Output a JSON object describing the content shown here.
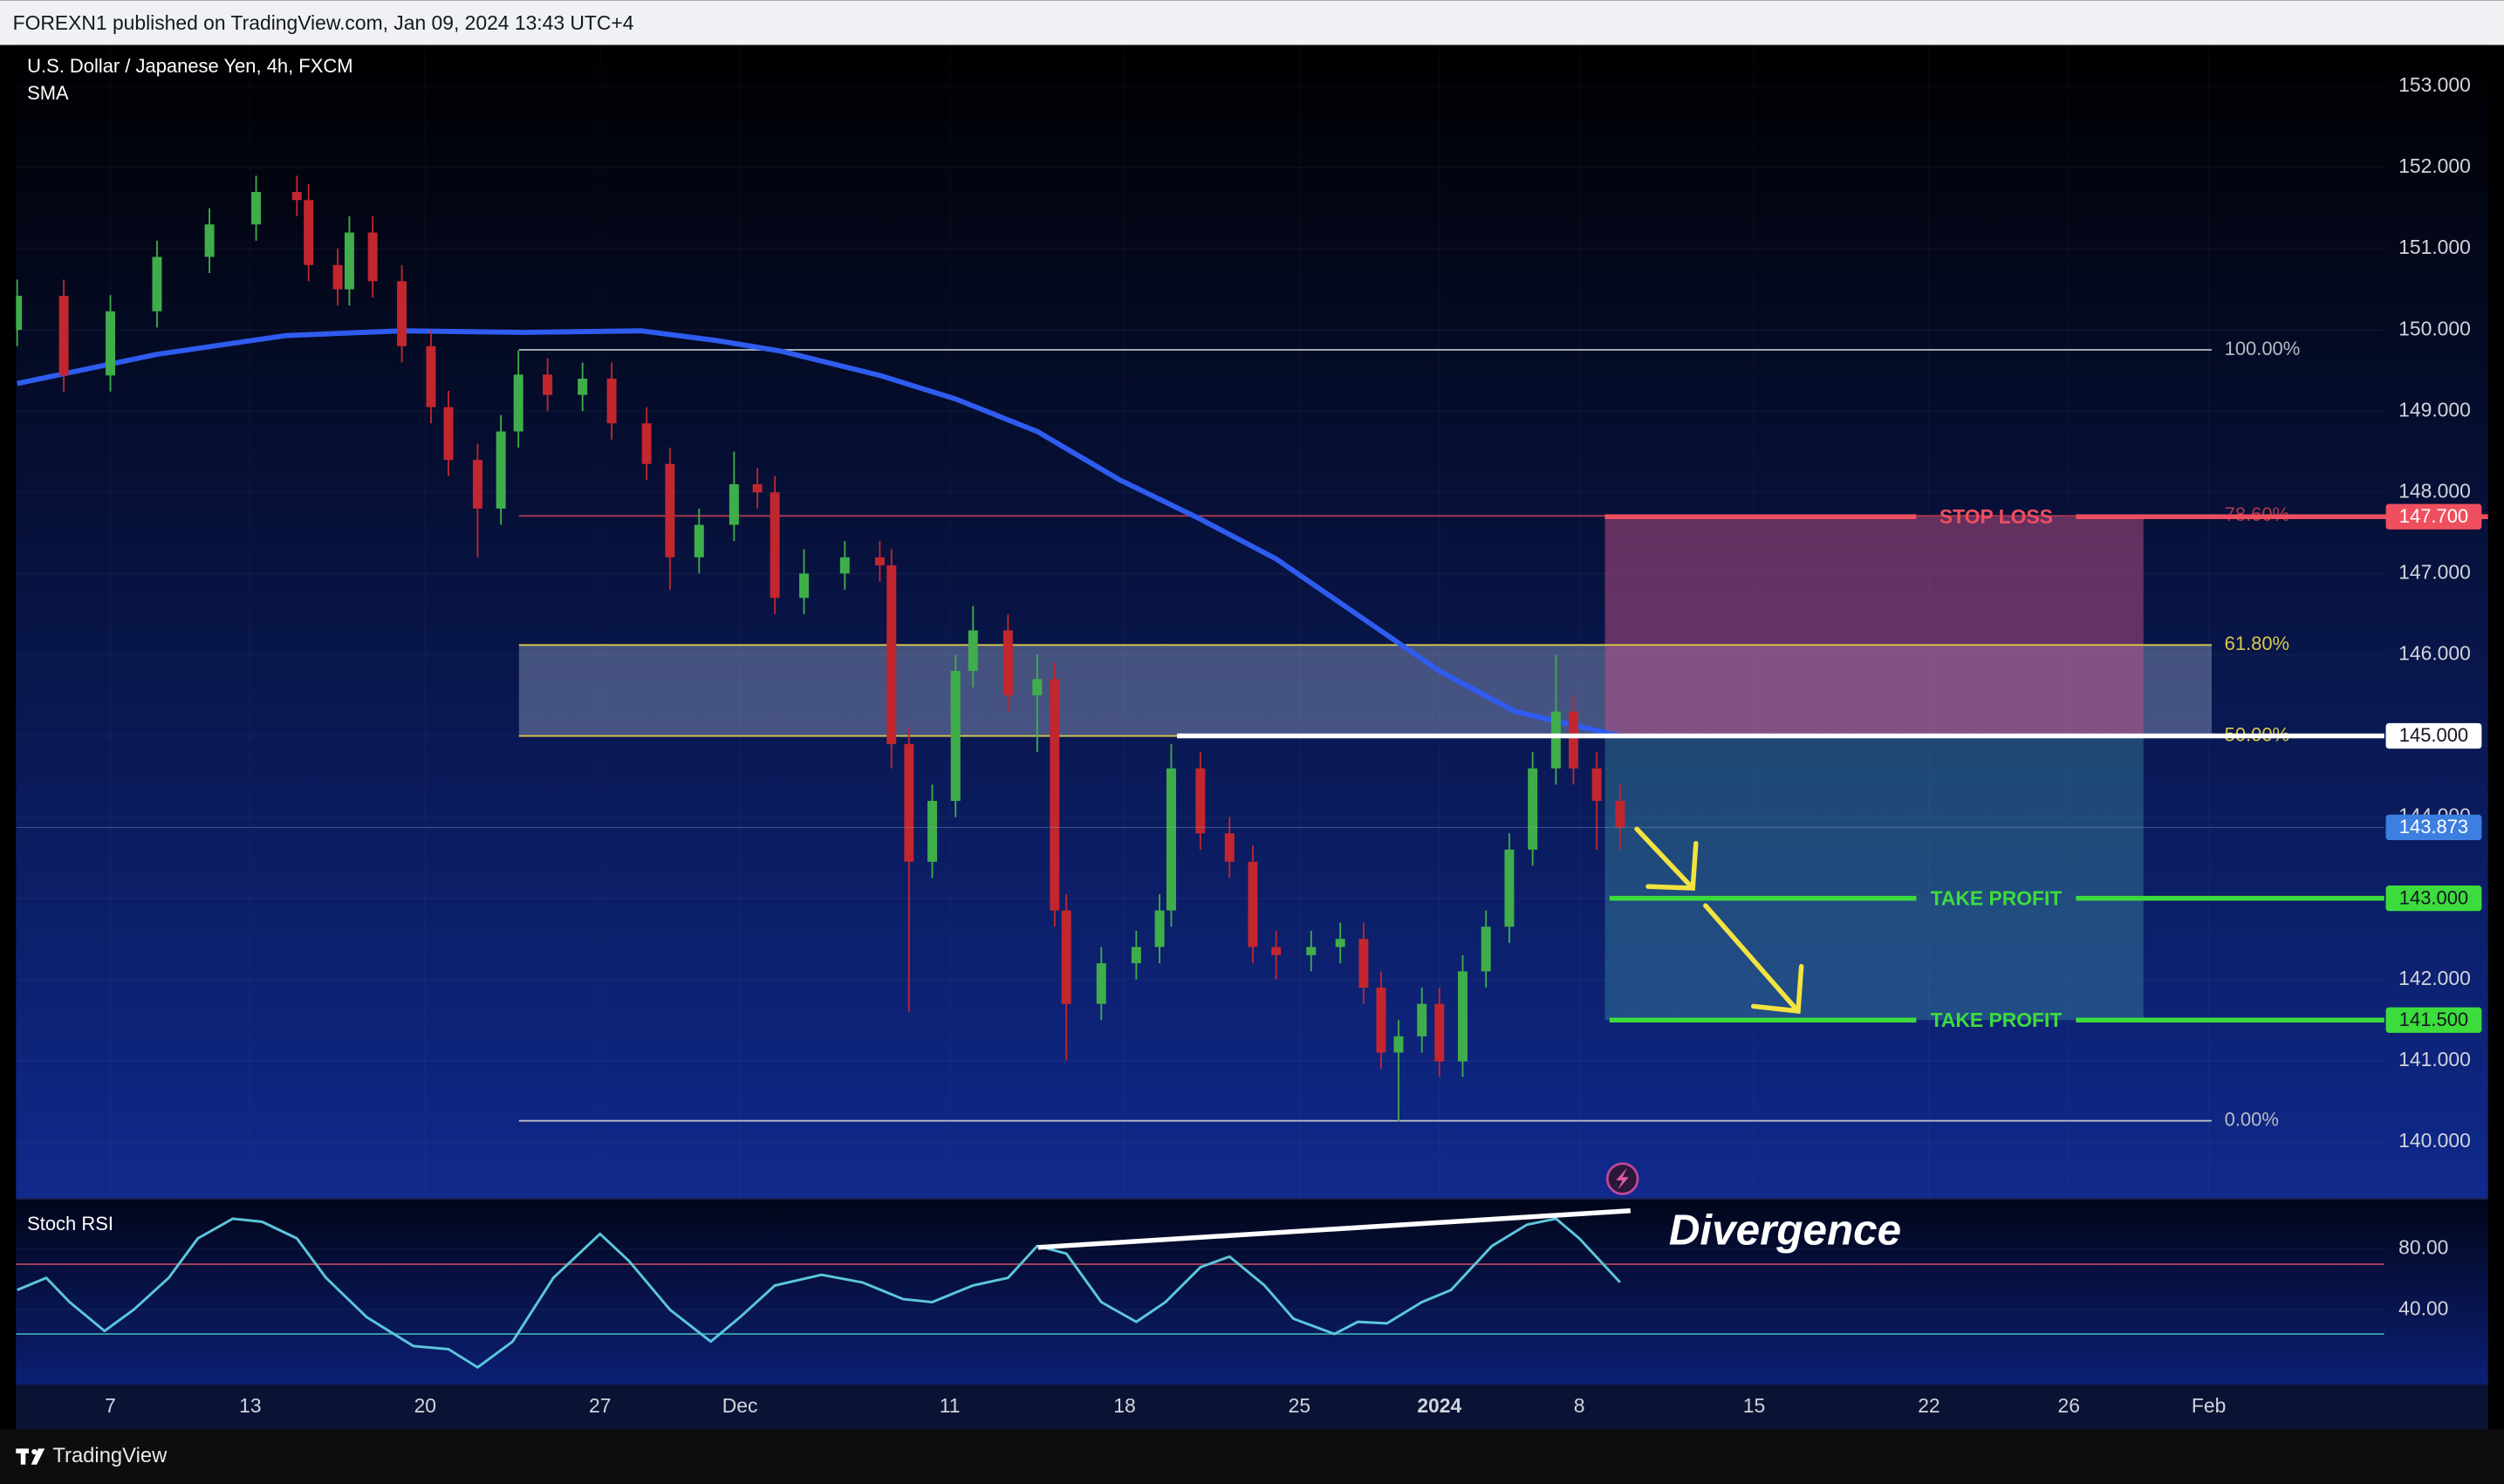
{
  "header": {
    "publisher_line": "FOREXN1 published on TradingView.com, Jan 09, 2024 13:43 UTC+4"
  },
  "chart_data": [
    {
      "type": "candlestick",
      "title": "U.S. Dollar / Japanese Yen, 4h, FXCM",
      "x": [
        -16,
        -8,
        0,
        8,
        17,
        25,
        32,
        34,
        39,
        41,
        45,
        50,
        55,
        58,
        63,
        67,
        70,
        75,
        81,
        86,
        92,
        96,
        101,
        107,
        111,
        114,
        119,
        126,
        132,
        134,
        137,
        141,
        145,
        148,
        154,
        159,
        162,
        164,
        170,
        176,
        180,
        182,
        187,
        192,
        196,
        200,
        206,
        211,
        215,
        218,
        221,
        225,
        228,
        232,
        236,
        240,
        244,
        248,
        251,
        255,
        259
      ],
      "open": [
        150.0,
        150.42,
        149.44,
        150.23,
        150.9,
        151.3,
        151.7,
        151.6,
        150.8,
        150.5,
        151.2,
        150.6,
        149.8,
        149.05,
        148.4,
        147.8,
        148.75,
        149.45,
        149.2,
        149.4,
        148.85,
        148.35,
        147.2,
        147.6,
        148.1,
        148.0,
        146.7,
        147.0,
        147.2,
        147.1,
        144.9,
        143.45,
        144.2,
        145.8,
        146.3,
        145.5,
        145.7,
        142.85,
        141.7,
        142.2,
        142.4,
        142.85,
        144.6,
        143.8,
        143.45,
        142.4,
        142.3,
        142.4,
        142.5,
        141.9,
        141.1,
        141.3,
        141.7,
        140.99,
        142.1,
        142.65,
        143.6,
        144.6,
        145.3,
        144.6,
        144.2
      ],
      "high": [
        150.62,
        150.62,
        150.43,
        151.1,
        151.5,
        151.9,
        151.9,
        151.8,
        151.0,
        151.4,
        151.4,
        150.8,
        150.0,
        149.25,
        148.6,
        148.95,
        149.75,
        149.65,
        149.6,
        149.6,
        149.05,
        148.55,
        147.8,
        148.5,
        148.3,
        148.2,
        147.3,
        147.4,
        147.4,
        147.3,
        145.1,
        144.4,
        146.0,
        146.6,
        146.5,
        146.0,
        145.9,
        143.05,
        142.4,
        142.6,
        143.05,
        144.9,
        144.8,
        144.0,
        143.65,
        142.6,
        142.6,
        142.7,
        142.7,
        142.1,
        141.5,
        141.9,
        141.9,
        142.3,
        142.85,
        143.8,
        144.8,
        146.0,
        145.5,
        144.8,
        144.4
      ],
      "low": [
        149.8,
        149.24,
        149.24,
        150.03,
        150.7,
        151.1,
        151.4,
        150.6,
        150.3,
        150.3,
        150.4,
        149.6,
        148.85,
        148.2,
        147.2,
        147.6,
        148.55,
        149.0,
        149.0,
        148.65,
        148.15,
        146.8,
        147.0,
        147.4,
        147.8,
        146.5,
        146.5,
        146.8,
        146.9,
        144.6,
        141.6,
        143.25,
        144.0,
        145.6,
        145.3,
        144.8,
        142.65,
        141.0,
        141.5,
        142.0,
        142.2,
        142.65,
        143.6,
        143.25,
        142.2,
        142.0,
        142.1,
        142.2,
        141.7,
        140.9,
        140.25,
        141.1,
        140.8,
        140.8,
        141.9,
        142.45,
        143.4,
        144.4,
        144.4,
        143.6,
        143.6
      ],
      "close": [
        150.42,
        149.44,
        150.23,
        150.9,
        151.3,
        151.7,
        151.6,
        150.8,
        150.5,
        151.2,
        150.6,
        149.8,
        149.05,
        148.4,
        147.8,
        148.75,
        149.45,
        149.2,
        149.4,
        148.85,
        148.35,
        147.2,
        147.6,
        148.1,
        148.0,
        146.7,
        147.0,
        147.2,
        147.1,
        144.9,
        143.45,
        144.2,
        145.8,
        146.3,
        145.5,
        145.7,
        142.85,
        141.7,
        142.2,
        142.4,
        142.85,
        144.6,
        143.8,
        143.45,
        142.4,
        142.3,
        142.4,
        142.5,
        141.9,
        141.1,
        141.3,
        141.7,
        140.99,
        142.1,
        142.65,
        143.6,
        144.6,
        145.3,
        144.6,
        144.2,
        143.873
      ],
      "up_color": "#3fae4a",
      "down_color": "#c2262e",
      "series": [
        {
          "name": "SMA",
          "color": "#2f5cf0",
          "x": [
            -16,
            8,
            30,
            50,
            71,
            91,
            104,
            115,
            132,
            145,
            159,
            173,
            187,
            200,
            214,
            228,
            241,
            259
          ],
          "values": [
            149.34,
            149.7,
            149.93,
            149.99,
            149.97,
            149.99,
            149.87,
            149.74,
            149.44,
            149.15,
            148.75,
            148.16,
            147.67,
            147.18,
            146.49,
            145.8,
            145.3,
            145.0
          ]
        }
      ],
      "xlim": [
        -16.2,
        390.1
      ],
      "xticks": [
        {
          "value": 0,
          "label": "7"
        },
        {
          "value": 24,
          "label": "13"
        },
        {
          "value": 54,
          "label": "20"
        },
        {
          "value": 84,
          "label": "27"
        },
        {
          "value": 108,
          "label": "Dec"
        },
        {
          "value": 144,
          "label": "11"
        },
        {
          "value": 174,
          "label": "18"
        },
        {
          "value": 204,
          "label": "25"
        },
        {
          "value": 228,
          "label": "2024"
        },
        {
          "value": 252,
          "label": "8"
        },
        {
          "value": 282,
          "label": "15"
        },
        {
          "value": 312,
          "label": "22"
        },
        {
          "value": 336,
          "label": "26"
        },
        {
          "value": 360,
          "label": "Feb"
        }
      ],
      "ylim": [
        139.31,
        153.51
      ],
      "yticks": [
        {
          "value": 140,
          "label": "140.000"
        },
        {
          "value": 141,
          "label": "141.000"
        },
        {
          "value": 142,
          "label": "142.000"
        },
        {
          "value": 143,
          "label": "143.000"
        },
        {
          "value": 144,
          "label": "144.000"
        },
        {
          "value": 145,
          "label": "145.000"
        },
        {
          "value": 146,
          "label": "146.000"
        },
        {
          "value": 147,
          "label": "147.000"
        },
        {
          "value": 148,
          "label": "148.000"
        },
        {
          "value": 149,
          "label": "149.000"
        },
        {
          "value": 150,
          "label": "150.000"
        },
        {
          "value": 151,
          "label": "151.000"
        },
        {
          "value": 152,
          "label": "152.000"
        },
        {
          "value": 153,
          "label": "153.000"
        }
      ],
      "fib": {
        "x": [
          70.1,
          360.5
        ],
        "levels": [
          {
            "value": 149.755,
            "label": "100.00%",
            "color": "#b8bcc6"
          },
          {
            "value": 147.71,
            "label": "78.60%",
            "color": "#b0384c"
          },
          {
            "value": 146.12,
            "label": "61.80%",
            "color": "#d8c84a"
          },
          {
            "value": 145.0,
            "label": "50.00%",
            "color": "#d8c84a"
          },
          {
            "value": 140.26,
            "label": "0.00%",
            "color": "#b8bcc6"
          }
        ]
      },
      "position": {
        "x": [
          256.4,
          348.8
        ]
      },
      "levels": [
        {
          "value": 147.7,
          "x_start": 256.4,
          "label": "STOP LOSS",
          "tag": "147.700",
          "color": "#ee4f5e"
        },
        {
          "value": 145.0,
          "x_start": 183,
          "tag": "145.000",
          "color": "#ffffff"
        },
        {
          "value": 143.873,
          "x_start": -16.2,
          "tag": "143.873",
          "color": "#3d7fe0"
        },
        {
          "value": 143.0,
          "x_start": 257.2,
          "label": "TAKE PROFIT",
          "tag": "143.000",
          "color": "#3ddc3d"
        },
        {
          "value": 141.5,
          "x_start": 257.2,
          "label": "TAKE PROFIT",
          "tag": "141.500",
          "color": "#3ddc3d"
        }
      ]
    },
    {
      "type": "line",
      "title": "Stoch RSI",
      "annotation": "Divergence",
      "series": [
        {
          "color": "#5cc7dc",
          "x": [
            -16,
            -11,
            -7,
            -1,
            4,
            10,
            15,
            21,
            26,
            32,
            37,
            44,
            52,
            58,
            63,
            69,
            76,
            84,
            89,
            96,
            103,
            108,
            114,
            122,
            129,
            136,
            141,
            148,
            154,
            159,
            164,
            170,
            176,
            181,
            187,
            192,
            198,
            203,
            210,
            214,
            219,
            225,
            230,
            237,
            243,
            248,
            252,
            259
          ],
          "values": [
            53,
            61,
            45,
            26,
            40,
            61,
            87,
            100,
            98,
            87,
            61,
            35,
            16,
            14,
            2,
            19,
            61,
            90,
            72,
            40,
            19,
            35,
            56,
            63,
            58,
            47,
            45,
            56,
            61,
            82,
            77,
            45,
            32,
            45,
            68,
            75,
            56,
            34,
            24,
            32,
            31,
            45,
            53,
            82,
            96,
            100,
            87,
            58
          ]
        }
      ],
      "ylim": [
        -8.4,
        111.6
      ],
      "yticks": [
        {
          "value": 80,
          "label": "80.00"
        },
        {
          "value": 40,
          "label": "40.00"
        }
      ],
      "bands": [
        {
          "value": 70,
          "color": "#a8445e"
        },
        {
          "value": 24,
          "color": "#3a9ea6"
        }
      ]
    }
  ],
  "footer": {
    "brand": "TradingView"
  }
}
